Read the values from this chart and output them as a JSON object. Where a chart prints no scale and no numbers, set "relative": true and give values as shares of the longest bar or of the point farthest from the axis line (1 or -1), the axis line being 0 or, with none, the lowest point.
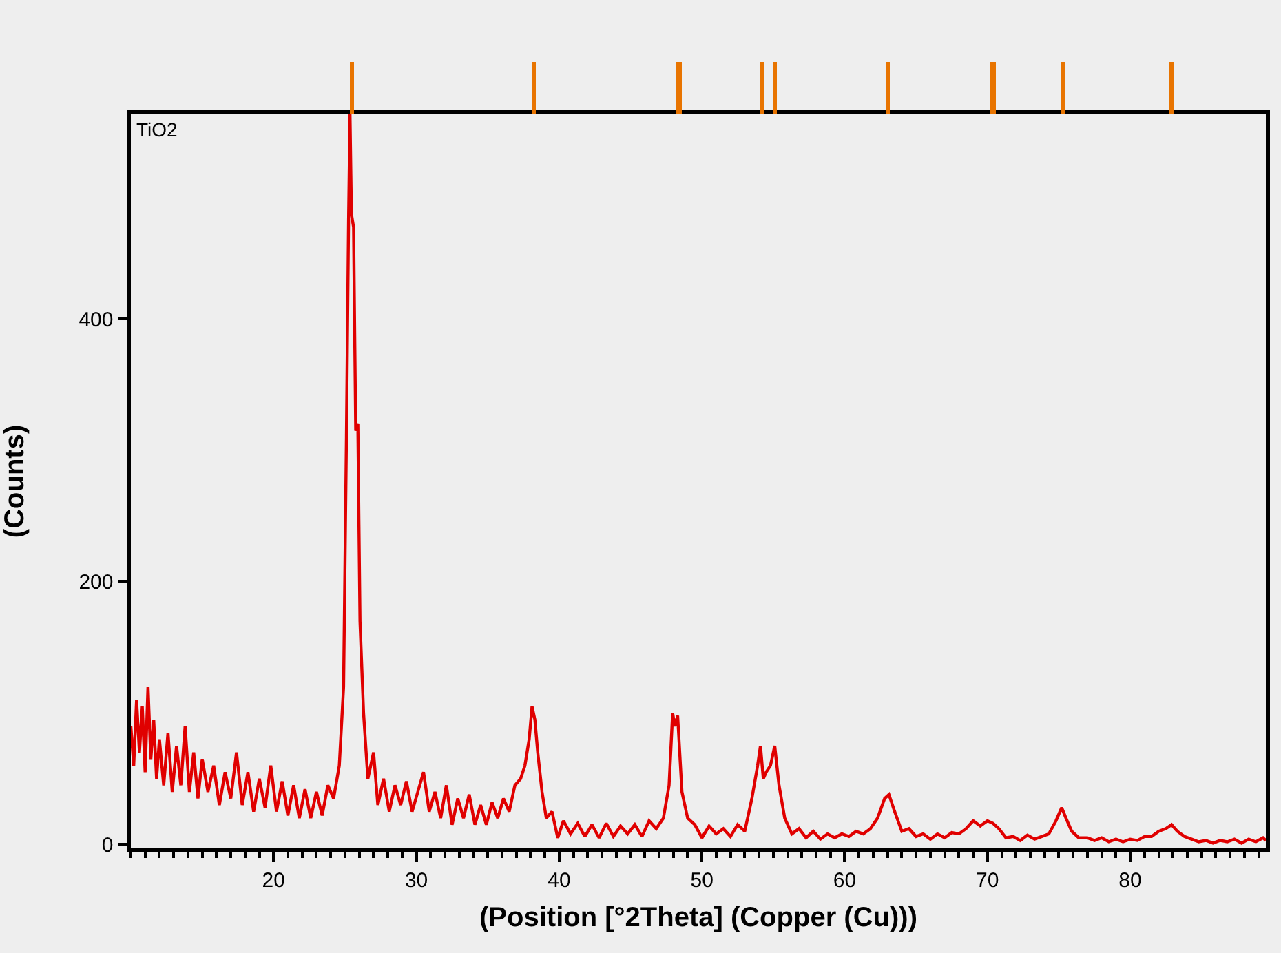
{
  "chart_data": [
    {
      "type": "bar",
      "relative": true,
      "xlim": [
        10,
        89.5
      ],
      "color": "#e87400",
      "x": [
        25.5,
        38.2,
        48.4,
        54.2,
        55.1,
        63.0,
        70.4,
        75.3,
        82.9
      ],
      "values": [
        1,
        1,
        1,
        1,
        1,
        1,
        1,
        1,
        1
      ]
    },
    {
      "type": "line",
      "xlabel": "(Position [°2Theta] (Copper (Cu)))",
      "ylabel": "(Counts)",
      "annotations": [
        "TiO2"
      ],
      "xlim": [
        10,
        89.5
      ],
      "xticks": [
        20,
        30,
        40,
        50,
        60,
        70,
        80
      ],
      "ylim": [
        -3,
        556
      ],
      "yticks": [
        0,
        200,
        400
      ],
      "grid": false,
      "marker": "none",
      "line_style": "solid",
      "series": [
        {
          "color": "#e00000",
          "x": [
            10.0,
            10.2,
            10.4,
            10.6,
            10.8,
            11.0,
            11.2,
            11.4,
            11.6,
            11.8,
            12.0,
            12.3,
            12.6,
            12.9,
            13.2,
            13.5,
            13.8,
            14.1,
            14.4,
            14.7,
            15.0,
            15.4,
            15.8,
            16.2,
            16.6,
            17.0,
            17.4,
            17.8,
            18.2,
            18.6,
            19.0,
            19.4,
            19.8,
            20.2,
            20.6,
            21.0,
            21.4,
            21.8,
            22.2,
            22.6,
            23.0,
            23.4,
            23.8,
            24.2,
            24.6,
            24.9,
            25.1,
            25.25,
            25.35,
            25.45,
            25.6,
            25.75,
            25.9,
            26.05,
            26.3,
            26.6,
            27.0,
            27.3,
            27.7,
            28.1,
            28.5,
            28.9,
            29.3,
            29.7,
            30.1,
            30.5,
            30.9,
            31.3,
            31.7,
            32.1,
            32.5,
            32.9,
            33.3,
            33.7,
            34.1,
            34.5,
            34.9,
            35.3,
            35.7,
            36.1,
            36.5,
            36.9,
            37.3,
            37.6,
            37.9,
            38.1,
            38.3,
            38.5,
            38.8,
            39.1,
            39.5,
            39.9,
            40.3,
            40.8,
            41.3,
            41.8,
            42.3,
            42.8,
            43.3,
            43.8,
            44.3,
            44.8,
            45.3,
            45.8,
            46.3,
            46.8,
            47.3,
            47.7,
            47.95,
            48.1,
            48.3,
            48.6,
            49.0,
            49.5,
            50.0,
            50.5,
            51.0,
            51.5,
            52.0,
            52.5,
            53.0,
            53.5,
            53.9,
            54.1,
            54.3,
            54.5,
            54.8,
            55.1,
            55.4,
            55.8,
            56.3,
            56.8,
            57.3,
            57.8,
            58.3,
            58.8,
            59.3,
            59.8,
            60.3,
            60.8,
            61.3,
            61.8,
            62.3,
            62.8,
            63.1,
            63.5,
            64.0,
            64.5,
            65.0,
            65.5,
            66.0,
            66.5,
            67.0,
            67.5,
            68.0,
            68.5,
            69.0,
            69.5,
            70.0,
            70.4,
            70.8,
            71.3,
            71.8,
            72.3,
            72.8,
            73.3,
            73.8,
            74.3,
            74.8,
            75.2,
            75.5,
            75.9,
            76.4,
            77.0,
            77.5,
            78.0,
            78.5,
            79.0,
            79.5,
            80.0,
            80.5,
            81.0,
            81.5,
            82.0,
            82.5,
            82.9,
            83.3,
            83.8,
            84.3,
            84.8,
            85.3,
            85.8,
            86.3,
            86.8,
            87.3,
            87.8,
            88.3,
            88.8,
            89.3,
            89.5
          ],
          "values": [
            90,
            60,
            110,
            70,
            105,
            55,
            120,
            65,
            95,
            50,
            80,
            45,
            85,
            40,
            75,
            45,
            90,
            40,
            70,
            35,
            65,
            40,
            60,
            30,
            55,
            35,
            70,
            30,
            55,
            25,
            50,
            28,
            60,
            25,
            48,
            22,
            45,
            20,
            42,
            20,
            40,
            22,
            45,
            35,
            60,
            120,
            310,
            475,
            556,
            480,
            470,
            315,
            320,
            170,
            100,
            50,
            70,
            30,
            50,
            25,
            45,
            30,
            48,
            25,
            40,
            55,
            25,
            40,
            20,
            45,
            15,
            35,
            20,
            38,
            15,
            30,
            15,
            32,
            20,
            35,
            25,
            45,
            50,
            60,
            80,
            105,
            95,
            70,
            40,
            20,
            25,
            5,
            18,
            8,
            16,
            6,
            15,
            5,
            16,
            6,
            14,
            8,
            15,
            6,
            18,
            12,
            20,
            45,
            100,
            90,
            98,
            40,
            20,
            15,
            5,
            14,
            8,
            12,
            6,
            15,
            10,
            35,
            60,
            75,
            50,
            55,
            60,
            75,
            45,
            20,
            8,
            12,
            5,
            10,
            4,
            8,
            5,
            8,
            6,
            10,
            8,
            12,
            20,
            35,
            38,
            25,
            10,
            12,
            6,
            8,
            4,
            8,
            5,
            9,
            8,
            12,
            18,
            14,
            18,
            16,
            12,
            5,
            6,
            3,
            7,
            4,
            6,
            8,
            18,
            28,
            20,
            10,
            5,
            5,
            3,
            5,
            2,
            4,
            2,
            4,
            3,
            6,
            6,
            10,
            12,
            15,
            10,
            6,
            4,
            2,
            3,
            1,
            3,
            2,
            4,
            1,
            4,
            2,
            5,
            3
          ]
        }
      ]
    }
  ]
}
